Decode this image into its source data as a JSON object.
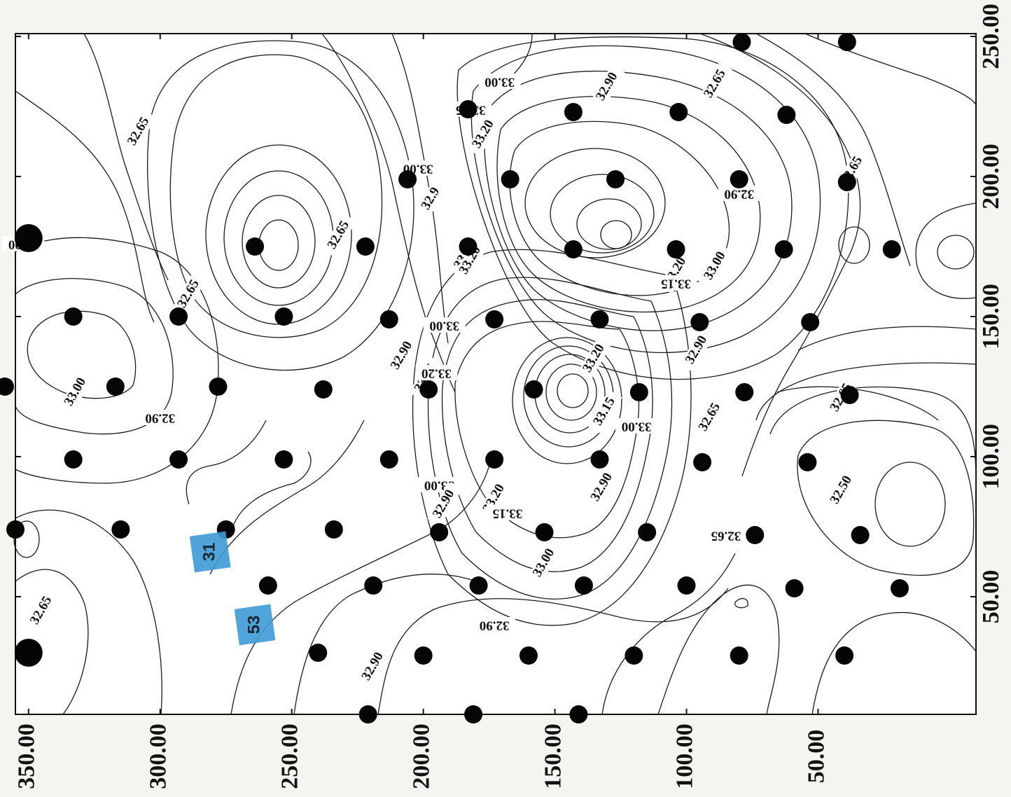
{
  "chart_data": {
    "type": "contour",
    "title": "",
    "x_axis": {
      "label": "",
      "range": [
        -10,
        355
      ],
      "direction": "right-to-left",
      "tick_values": [
        350,
        300,
        250,
        200,
        150,
        100,
        50
      ],
      "tick_labels": [
        "350.00",
        "300.00",
        "250.00",
        "200.00",
        "150.00",
        "100.00",
        "50.00"
      ]
    },
    "y_axis": {
      "label": "",
      "range": [
        8,
        251
      ],
      "position": "right",
      "tick_values": [
        250,
        200,
        150,
        100,
        50
      ],
      "tick_labels": [
        "250.00",
        "200.00",
        "150.00",
        "100.00",
        "50.00"
      ]
    },
    "grid": false,
    "contour_levels": [
      "32.50",
      "32.65",
      "32.90",
      "33.00",
      "33.15",
      "33.20"
    ],
    "contour_labels": [
      {
        "text": "33.00",
        "x": 171,
        "y": 234
      },
      {
        "text": "32.90",
        "x": 130,
        "y": 232
      },
      {
        "text": "32.65",
        "x": 89,
        "y": 233
      },
      {
        "text": "33.15",
        "x": 182,
        "y": 224
      },
      {
        "text": "33.20",
        "x": 177,
        "y": 215
      },
      {
        "text": "32.65",
        "x": 308,
        "y": 216
      },
      {
        "text": "33.00",
        "x": 202,
        "y": 203
      },
      {
        "text": "32.9",
        "x": 197,
        "y": 192
      },
      {
        "text": "32.65",
        "x": 232,
        "y": 179
      },
      {
        "text": "32.90",
        "x": 352,
        "y": 176
      },
      {
        "text": "33.15",
        "x": 184,
        "y": 172
      },
      {
        "text": "33.20",
        "x": 182,
        "y": 170
      },
      {
        "text": "32.90",
        "x": 80,
        "y": 194
      },
      {
        "text": "32.65",
        "x": 37,
        "y": 202
      },
      {
        "text": "33.20",
        "x": 104,
        "y": 166
      },
      {
        "text": "33.15",
        "x": 104,
        "y": 162
      },
      {
        "text": "33.00",
        "x": 89,
        "y": 168
      },
      {
        "text": "32.65",
        "x": 289,
        "y": 158
      },
      {
        "text": "33.00",
        "x": 192,
        "y": 147
      },
      {
        "text": "32.90",
        "x": 208,
        "y": 136
      },
      {
        "text": "33.15",
        "x": 199,
        "y": 128
      },
      {
        "text": "33.20",
        "x": 195,
        "y": 130
      },
      {
        "text": "33.20",
        "x": 135,
        "y": 135
      },
      {
        "text": "33.00",
        "x": 332,
        "y": 123
      },
      {
        "text": "32.90",
        "x": 300,
        "y": 114
      },
      {
        "text": "32.90",
        "x": 96,
        "y": 138
      },
      {
        "text": "33.15",
        "x": 131,
        "y": 116
      },
      {
        "text": "33.00",
        "x": 119,
        "y": 111
      },
      {
        "text": "32.65",
        "x": 91,
        "y": 114
      },
      {
        "text": "32.65",
        "x": 41,
        "y": 121
      },
      {
        "text": "33.00",
        "x": 194,
        "y": 90
      },
      {
        "text": "32.90",
        "x": 192,
        "y": 83
      },
      {
        "text": "33.20",
        "x": 173,
        "y": 85
      },
      {
        "text": "33.15",
        "x": 168,
        "y": 80
      },
      {
        "text": "32.90",
        "x": 132,
        "y": 89
      },
      {
        "text": "32.50",
        "x": 41,
        "y": 88
      },
      {
        "text": "32.65",
        "x": 85,
        "y": 72
      },
      {
        "text": "33.00",
        "x": 154,
        "y": 62
      },
      {
        "text": "32.65",
        "x": 345,
        "y": 45
      },
      {
        "text": "32.90",
        "x": 173,
        "y": 40
      },
      {
        "text": "32.90",
        "x": 219,
        "y": 25
      }
    ],
    "stations": [
      {
        "x": 79,
        "y": 248
      },
      {
        "x": 39,
        "y": 248
      },
      {
        "x": 183,
        "y": 224
      },
      {
        "x": 143,
        "y": 223
      },
      {
        "x": 103,
        "y": 223
      },
      {
        "x": 62,
        "y": 222
      },
      {
        "x": 206,
        "y": 199
      },
      {
        "x": 167,
        "y": 199
      },
      {
        "x": 127,
        "y": 199
      },
      {
        "x": 80,
        "y": 199
      },
      {
        "x": 39,
        "y": 198
      },
      {
        "x": 350,
        "y": 178
      },
      {
        "x": 264,
        "y": 175
      },
      {
        "x": 222,
        "y": 175
      },
      {
        "x": 183,
        "y": 175
      },
      {
        "x": 143,
        "y": 174
      },
      {
        "x": 104,
        "y": 174
      },
      {
        "x": 63,
        "y": 174
      },
      {
        "x": 22,
        "y": 174
      },
      {
        "x": 333,
        "y": 150
      },
      {
        "x": 293,
        "y": 150
      },
      {
        "x": 253,
        "y": 150
      },
      {
        "x": 213,
        "y": 149
      },
      {
        "x": 173,
        "y": 149
      },
      {
        "x": 133,
        "y": 149
      },
      {
        "x": 95,
        "y": 148
      },
      {
        "x": 53,
        "y": 148
      },
      {
        "x": 359,
        "y": 125
      },
      {
        "x": 317,
        "y": 125
      },
      {
        "x": 278,
        "y": 125
      },
      {
        "x": 238,
        "y": 124
      },
      {
        "x": 198,
        "y": 124
      },
      {
        "x": 158,
        "y": 124
      },
      {
        "x": 118,
        "y": 123
      },
      {
        "x": 78,
        "y": 123
      },
      {
        "x": 38,
        "y": 122
      },
      {
        "x": 333,
        "y": 99
      },
      {
        "x": 293,
        "y": 99
      },
      {
        "x": 253,
        "y": 99
      },
      {
        "x": 213,
        "y": 99
      },
      {
        "x": 173,
        "y": 99
      },
      {
        "x": 133,
        "y": 99
      },
      {
        "x": 94,
        "y": 98
      },
      {
        "x": 54,
        "y": 98
      },
      {
        "x": 355,
        "y": 74
      },
      {
        "x": 315,
        "y": 74
      },
      {
        "x": 275,
        "y": 74
      },
      {
        "x": 234,
        "y": 74
      },
      {
        "x": 194,
        "y": 73
      },
      {
        "x": 154,
        "y": 73
      },
      {
        "x": 115,
        "y": 73
      },
      {
        "x": 74,
        "y": 72
      },
      {
        "x": 34,
        "y": 72
      },
      {
        "x": 259,
        "y": 54
      },
      {
        "x": 219,
        "y": 54
      },
      {
        "x": 179,
        "y": 54
      },
      {
        "x": 139,
        "y": 54
      },
      {
        "x": 100,
        "y": 54
      },
      {
        "x": 59,
        "y": 53
      },
      {
        "x": 19,
        "y": 53
      },
      {
        "x": 350,
        "y": 30
      },
      {
        "x": 240,
        "y": 30
      },
      {
        "x": 200,
        "y": 29
      },
      {
        "x": 160,
        "y": 29
      },
      {
        "x": 120,
        "y": 29
      },
      {
        "x": 80,
        "y": 29
      },
      {
        "x": 40,
        "y": 29
      },
      {
        "x": 221,
        "y": 8
      },
      {
        "x": 181,
        "y": 8
      },
      {
        "x": 141,
        "y": 8
      }
    ],
    "large_stations": [
      {
        "x": 350,
        "y": 178
      },
      {
        "x": 350,
        "y": 30
      }
    ],
    "tagged_stations": [
      {
        "tag": "31",
        "x": 281,
        "y": 66
      },
      {
        "tag": "53",
        "x": 264,
        "y": 40
      }
    ]
  }
}
